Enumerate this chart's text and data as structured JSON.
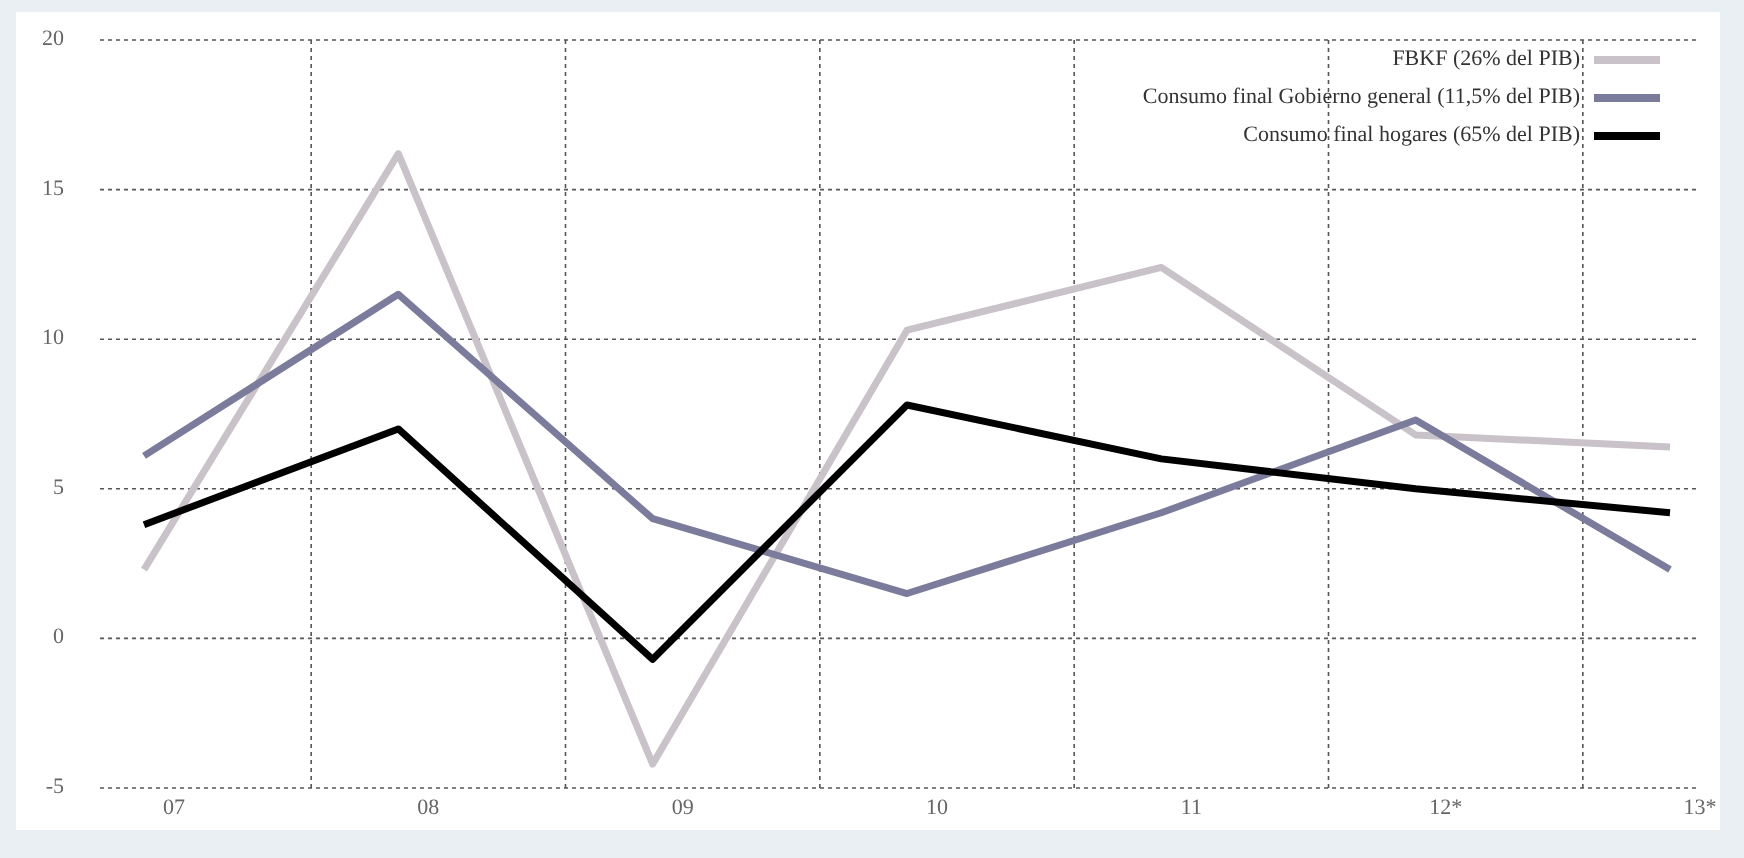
{
  "chart_data": {
    "type": "line",
    "categories": [
      "07",
      "08",
      "09",
      "10",
      "11",
      "12*",
      "13*"
    ],
    "series": [
      {
        "name": "FBKF (26% del PIB)",
        "color": "#c9c2c9",
        "values": [
          2.3,
          16.2,
          -4.2,
          10.3,
          12.4,
          6.8,
          6.4
        ]
      },
      {
        "name": "Consumo final Gobierno general (11,5% del PIB)",
        "color": "#7b7b9c",
        "values": [
          6.1,
          11.5,
          4.0,
          1.5,
          4.2,
          7.3,
          2.3
        ]
      },
      {
        "name": "Consumo final  hogares (65% del PIB)",
        "color": "#000000",
        "values": [
          3.8,
          7.0,
          -0.7,
          7.8,
          6.0,
          5.0,
          4.2
        ]
      }
    ],
    "ylim": [
      -5,
      20
    ],
    "yticks": [
      -5,
      0,
      5,
      10,
      15,
      20
    ],
    "grid": true,
    "legend": "top right",
    "line_style": "solid"
  }
}
